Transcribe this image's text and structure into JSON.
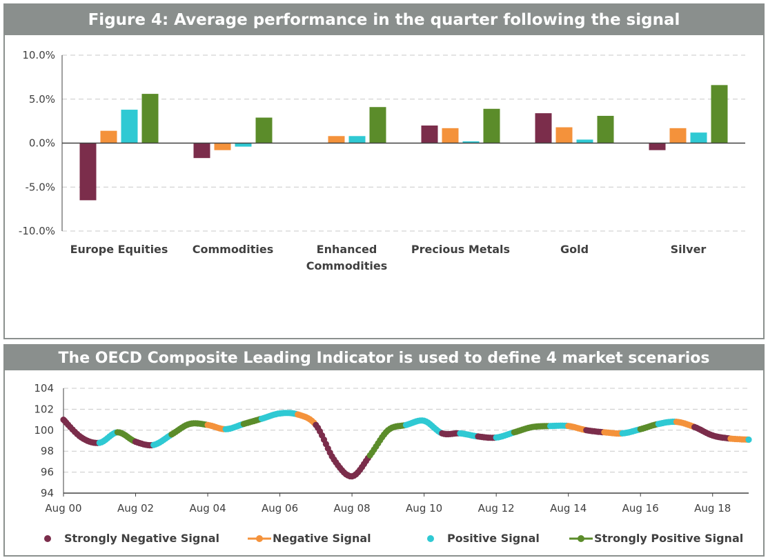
{
  "colors": {
    "strongly_negative": "#7b2d4b",
    "negative": "#f4923b",
    "positive": "#2fc9d3",
    "strongly_positive": "#5b8c2a",
    "header_bg": "#8a8f8d",
    "grid": "#c8c8c8",
    "axis": "#404040"
  },
  "chart_data": [
    {
      "type": "bar",
      "title": "Figure 4: Average performance in the quarter following the signal",
      "categories": [
        "Europe Equities",
        "Commodities",
        "Enhanced Commodities",
        "Precious Metals",
        "Gold",
        "Silver"
      ],
      "category_labels": [
        [
          "Europe Equities"
        ],
        [
          "Commodities"
        ],
        [
          "Enhanced",
          "Commodities"
        ],
        [
          "Precious Metals"
        ],
        [
          "Gold"
        ],
        [
          "Silver"
        ]
      ],
      "series": [
        {
          "key": "strongly_negative",
          "values": [
            -6.5,
            -1.7,
            0.0,
            2.0,
            3.4,
            -0.8
          ]
        },
        {
          "key": "negative",
          "values": [
            1.4,
            -0.8,
            0.8,
            1.7,
            1.8,
            1.7
          ]
        },
        {
          "key": "positive",
          "values": [
            3.8,
            -0.4,
            0.8,
            0.2,
            0.4,
            1.2
          ]
        },
        {
          "key": "strongly_positive",
          "values": [
            5.6,
            2.9,
            4.1,
            3.9,
            3.1,
            6.6
          ]
        }
      ],
      "ylim": [
        -10,
        10
      ],
      "yticks": [
        -10,
        -5,
        0,
        5,
        10
      ],
      "ytick_labels": [
        "-10.0%",
        "-5.0%",
        "0.0%",
        "5.0%",
        "10.0%"
      ],
      "grid": true,
      "xlabel": "",
      "ylabel": ""
    },
    {
      "type": "line",
      "title": "The OECD  Composite Leading Indicator is used to define 4 market scenarios",
      "x_start": "Aug 00",
      "x_end": "Aug 19",
      "xtick_labels": [
        "Aug 00",
        "Aug 02",
        "Aug 04",
        "Aug 06",
        "Aug 08",
        "Aug 10",
        "Aug 12",
        "Aug 14",
        "Aug 16",
        "Aug 18"
      ],
      "ylim": [
        94,
        104
      ],
      "yticks": [
        94,
        96,
        98,
        100,
        102,
        104
      ],
      "grid": true,
      "legend_position": "bottom",
      "legend": [
        {
          "key": "strongly_negative",
          "label": "Strongly Negative Signal",
          "marker": "dot"
        },
        {
          "key": "negative",
          "label": "Negative Signal",
          "marker": "line-dot"
        },
        {
          "key": "positive",
          "label": "Positive Signal",
          "marker": "dot"
        },
        {
          "key": "strongly_positive",
          "label": "Strongly Positive Signal",
          "marker": "line-dot"
        }
      ],
      "points": [
        {
          "x": "Aug 00",
          "y": 101.0,
          "signal": "strongly_negative"
        },
        {
          "x": "Feb 01",
          "y": 99.3,
          "signal": "strongly_negative"
        },
        {
          "x": "Aug 01",
          "y": 98.8,
          "signal": "positive"
        },
        {
          "x": "Feb 02",
          "y": 99.8,
          "signal": "strongly_positive"
        },
        {
          "x": "Aug 02",
          "y": 98.9,
          "signal": "strongly_negative"
        },
        {
          "x": "Feb 03",
          "y": 98.6,
          "signal": "positive"
        },
        {
          "x": "Aug 03",
          "y": 99.6,
          "signal": "strongly_positive"
        },
        {
          "x": "Feb 04",
          "y": 100.6,
          "signal": "strongly_positive"
        },
        {
          "x": "Aug 04",
          "y": 100.5,
          "signal": "negative"
        },
        {
          "x": "Feb 05",
          "y": 100.1,
          "signal": "positive"
        },
        {
          "x": "Aug 05",
          "y": 100.6,
          "signal": "strongly_positive"
        },
        {
          "x": "Feb 06",
          "y": 101.1,
          "signal": "positive"
        },
        {
          "x": "Aug 06",
          "y": 101.6,
          "signal": "positive"
        },
        {
          "x": "Feb 07",
          "y": 101.5,
          "signal": "negative"
        },
        {
          "x": "Aug 07",
          "y": 100.5,
          "signal": "strongly_negative"
        },
        {
          "x": "Feb 08",
          "y": 97.2,
          "signal": "strongly_negative"
        },
        {
          "x": "Aug 08",
          "y": 95.6,
          "signal": "strongly_negative"
        },
        {
          "x": "Feb 09",
          "y": 97.6,
          "signal": "strongly_positive"
        },
        {
          "x": "Aug 09",
          "y": 100.0,
          "signal": "strongly_positive"
        },
        {
          "x": "Feb 10",
          "y": 100.5,
          "signal": "positive"
        },
        {
          "x": "Aug 10",
          "y": 100.9,
          "signal": "positive"
        },
        {
          "x": "Feb 11",
          "y": 99.7,
          "signal": "strongly_negative"
        },
        {
          "x": "Aug 11",
          "y": 99.7,
          "signal": "positive"
        },
        {
          "x": "Feb 12",
          "y": 99.4,
          "signal": "strongly_negative"
        },
        {
          "x": "Aug 12",
          "y": 99.3,
          "signal": "positive"
        },
        {
          "x": "Feb 13",
          "y": 99.8,
          "signal": "strongly_positive"
        },
        {
          "x": "Aug 13",
          "y": 100.3,
          "signal": "strongly_positive"
        },
        {
          "x": "Feb 14",
          "y": 100.4,
          "signal": "positive"
        },
        {
          "x": "Aug 14",
          "y": 100.4,
          "signal": "negative"
        },
        {
          "x": "Feb 15",
          "y": 100.0,
          "signal": "strongly_negative"
        },
        {
          "x": "Aug 15",
          "y": 99.8,
          "signal": "negative"
        },
        {
          "x": "Feb 16",
          "y": 99.7,
          "signal": "positive"
        },
        {
          "x": "Aug 16",
          "y": 100.1,
          "signal": "strongly_positive"
        },
        {
          "x": "Feb 17",
          "y": 100.6,
          "signal": "positive"
        },
        {
          "x": "Aug 17",
          "y": 100.8,
          "signal": "negative"
        },
        {
          "x": "Feb 18",
          "y": 100.3,
          "signal": "strongly_negative"
        },
        {
          "x": "Aug 18",
          "y": 99.5,
          "signal": "strongly_negative"
        },
        {
          "x": "Feb 19",
          "y": 99.2,
          "signal": "negative"
        },
        {
          "x": "Aug 19",
          "y": 99.1,
          "signal": "positive"
        }
      ]
    }
  ]
}
